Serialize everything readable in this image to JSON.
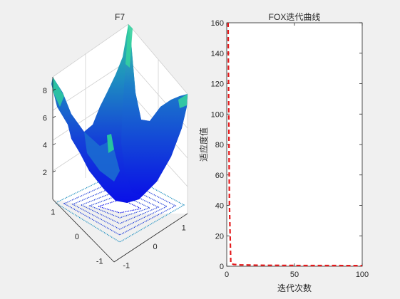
{
  "chart_data": [
    {
      "type": "surface",
      "title": "F7",
      "x_ticks": [
        "-1",
        "0",
        "1"
      ],
      "y_ticks": [
        "-1",
        "0",
        "1"
      ],
      "z_ticks": [
        "2",
        "4",
        "6",
        "8"
      ],
      "xlim": [
        -1.28,
        1.28
      ],
      "ylim": [
        -1.28,
        1.28
      ],
      "zlim": [
        0,
        9
      ],
      "colormap": "winter"
    },
    {
      "type": "line",
      "title": "FOX迭代曲线",
      "xlabel": "迭代次数",
      "ylabel": "适应度值",
      "xlim": [
        0,
        100
      ],
      "ylim": [
        0,
        160
      ],
      "x_ticks": [
        "0",
        "50",
        "100"
      ],
      "y_ticks": [
        "0",
        "20",
        "40",
        "60",
        "80",
        "100",
        "120",
        "140",
        "160"
      ],
      "grid": false,
      "series": [
        {
          "color": "#e41a1c",
          "line_style": "dashed",
          "x": [
            1,
            2,
            3,
            5,
            10,
            20,
            30,
            40,
            50,
            60,
            70,
            80,
            90,
            100
          ],
          "y": [
            160,
            40,
            2,
            1.2,
            0.9,
            0.7,
            0.6,
            0.55,
            0.5,
            0.48,
            0.46,
            0.45,
            0.44,
            0.43
          ]
        }
      ]
    }
  ]
}
